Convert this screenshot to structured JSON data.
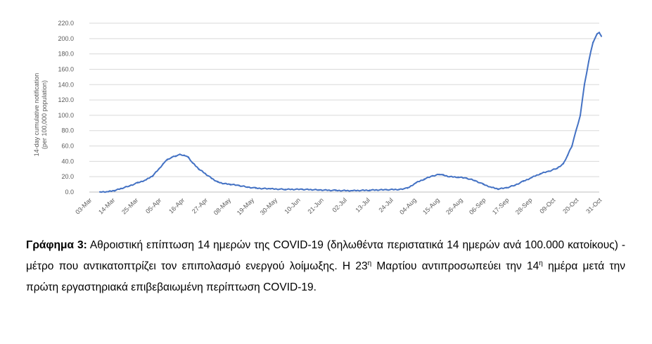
{
  "chart_data": {
    "type": "line",
    "title": "",
    "xlabel": "",
    "ylabel": "14-day cumulative notification (per 100,000 population)",
    "ylabel_lines": [
      "14-day cumulative notification",
      "(per 100,000 population)"
    ],
    "ylim": [
      0,
      220
    ],
    "yticks": [
      "0.0",
      "20.0",
      "40.0",
      "60.0",
      "80.0",
      "100.0",
      "120.0",
      "140.0",
      "160.0",
      "180.0",
      "200.0",
      "220.0"
    ],
    "x_ticks": [
      "03-Mar",
      "14-Mar",
      "25-Mar",
      "05-Apr",
      "16-Apr",
      "27-Apr",
      "08-May",
      "19-May",
      "30-May",
      "10-Jun",
      "21-Jun",
      "02-Jul",
      "13-Jul",
      "24-Jul",
      "04-Aug",
      "15-Aug",
      "26-Aug",
      "06-Sep",
      "17-Sep",
      "28-Sep",
      "09-Oct",
      "20-Oct",
      "31-Oct"
    ],
    "x_start": "03-Mar",
    "x_end": "31-Oct",
    "grid": "horizontal",
    "line_color": "#4472c4",
    "series": [
      {
        "points": [
          [
            "08-Mar",
            0.2
          ],
          [
            "12-Mar",
            0.5
          ],
          [
            "15-Mar",
            2.0
          ],
          [
            "18-Mar",
            4.5
          ],
          [
            "22-Mar",
            8.0
          ],
          [
            "26-Mar",
            12.0
          ],
          [
            "30-Mar",
            16.0
          ],
          [
            "02-Apr",
            21.0
          ],
          [
            "05-Apr",
            30.0
          ],
          [
            "07-Apr",
            37.0
          ],
          [
            "09-Apr",
            42.0
          ],
          [
            "11-Apr",
            45.0
          ],
          [
            "13-Apr",
            47.0
          ],
          [
            "15-Apr",
            49.0
          ],
          [
            "17-Apr",
            48.0
          ],
          [
            "19-Apr",
            45.0
          ],
          [
            "21-Apr",
            38.0
          ],
          [
            "24-Apr",
            30.0
          ],
          [
            "27-Apr",
            24.0
          ],
          [
            "30-Apr",
            18.0
          ],
          [
            "03-May",
            13.0
          ],
          [
            "06-May",
            11.0
          ],
          [
            "09-May",
            10.0
          ],
          [
            "13-May",
            8.5
          ],
          [
            "17-May",
            6.5
          ],
          [
            "21-May",
            5.0
          ],
          [
            "28-May",
            4.2
          ],
          [
            "04-Jun",
            3.5
          ],
          [
            "12-Jun",
            3.5
          ],
          [
            "20-Jun",
            2.8
          ],
          [
            "28-Jun",
            2.0
          ],
          [
            "06-Jul",
            1.8
          ],
          [
            "14-Jul",
            2.5
          ],
          [
            "22-Jul",
            3.0
          ],
          [
            "28-Jul",
            3.5
          ],
          [
            "01-Aug",
            5.0
          ],
          [
            "05-Aug",
            12.0
          ],
          [
            "09-Aug",
            17.0
          ],
          [
            "13-Aug",
            21.0
          ],
          [
            "16-Aug",
            23.0
          ],
          [
            "18-Aug",
            22.0
          ],
          [
            "21-Aug",
            20.0
          ],
          [
            "25-Aug",
            19.5
          ],
          [
            "29-Aug",
            18.0
          ],
          [
            "02-Sep",
            15.0
          ],
          [
            "06-Sep",
            10.0
          ],
          [
            "10-Sep",
            6.0
          ],
          [
            "13-Sep",
            4.0
          ],
          [
            "17-Sep",
            5.5
          ],
          [
            "21-Sep",
            9.0
          ],
          [
            "25-Sep",
            14.0
          ],
          [
            "29-Sep",
            19.0
          ],
          [
            "03-Oct",
            24.0
          ],
          [
            "07-Oct",
            27.0
          ],
          [
            "11-Oct",
            31.0
          ],
          [
            "14-Oct",
            37.0
          ],
          [
            "16-Oct",
            48.0
          ],
          [
            "18-Oct",
            60.0
          ],
          [
            "20-Oct",
            80.0
          ],
          [
            "22-Oct",
            100.0
          ],
          [
            "24-Oct",
            140.0
          ],
          [
            "26-Oct",
            170.0
          ],
          [
            "28-Oct",
            195.0
          ],
          [
            "30-Oct",
            206.0
          ],
          [
            "31-Oct",
            208.0
          ],
          [
            "01-Nov",
            203.0
          ]
        ]
      }
    ]
  },
  "caption": {
    "bold": "Γράφημα 3:",
    "part1": " Αθροιστική επίπτωση 14 ημερών της COVID-19 (δηλωθέντα περιστατικά 14 ημερών ανά 100.000 κατοίκους) - μέτρο που αντικατοπτρίζει τον επιπολασμό ενεργού λοίμωξης. Η 23",
    "sup1": "η",
    "part2": " Μαρτίου αντιπροσωπεύει την 14",
    "sup2": "η",
    "part3": " ημέρα μετά την πρώτη εργαστηριακά επιβεβαιωμένη περίπτωση COVID-19."
  }
}
